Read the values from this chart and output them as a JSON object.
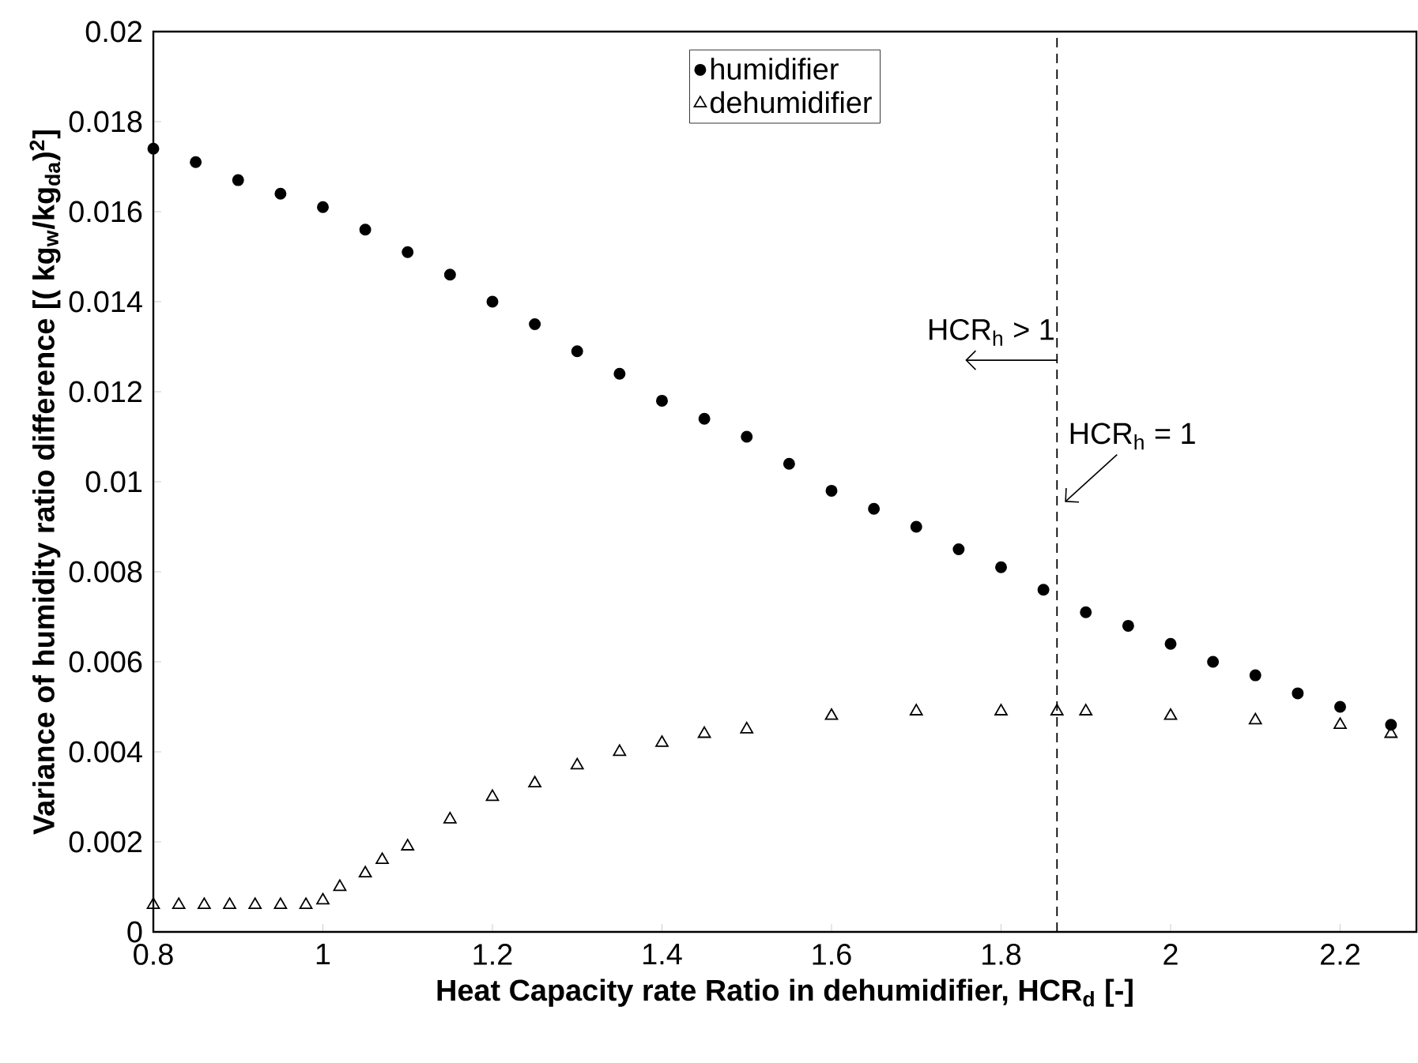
{
  "chart_data": {
    "type": "scatter",
    "xlabel": "**Heat Capacity rate Ratio in dehumidifier, HCR$_{d}$ [-]**",
    "ylabel": "**Variance of humidity ratio difference [( kg$_{w}$/kg$_{da}$)$^{2}$]**",
    "xlim": [
      0.8,
      2.29
    ],
    "ylim": [
      0,
      0.02
    ],
    "xticks": [
      0.8,
      1,
      1.2,
      1.4,
      1.6,
      1.8,
      2,
      2.2
    ],
    "yticks": [
      0,
      0.002,
      0.004,
      0.006,
      0.008,
      0.01,
      0.012,
      0.014,
      0.016,
      0.018,
      0.02
    ],
    "legend": "top",
    "grid": false,
    "series": [
      {
        "name": "humidifier",
        "color": "#000000",
        "marker": "circle",
        "x": [
          0.8,
          0.85,
          0.9,
          0.95,
          1.0,
          1.05,
          1.1,
          1.15,
          1.2,
          1.25,
          1.3,
          1.35,
          1.4,
          1.45,
          1.5,
          1.55,
          1.6,
          1.65,
          1.7,
          1.75,
          1.8,
          1.85,
          1.9,
          1.95,
          2.0,
          2.05,
          2.1,
          2.15,
          2.2,
          2.26
        ],
        "values": [
          0.0174,
          0.0171,
          0.0167,
          0.0164,
          0.0161,
          0.0156,
          0.0151,
          0.0146,
          0.014,
          0.0135,
          0.0129,
          0.0124,
          0.0118,
          0.0114,
          0.011,
          0.0104,
          0.0098,
          0.0094,
          0.009,
          0.0085,
          0.0081,
          0.0076,
          0.0071,
          0.0068,
          0.0064,
          0.006,
          0.0057,
          0.0053,
          0.005,
          0.0046
        ]
      },
      {
        "name": "dehumidifier",
        "color": "#000000",
        "marker": "triangle",
        "x": [
          0.8,
          0.83,
          0.86,
          0.89,
          0.92,
          0.95,
          0.98,
          1.0,
          1.02,
          1.05,
          1.07,
          1.1,
          1.15,
          1.2,
          1.25,
          1.3,
          1.35,
          1.4,
          1.45,
          1.5,
          1.6,
          1.7,
          1.8,
          1.866,
          1.9,
          2.0,
          2.1,
          2.2,
          2.26
        ],
        "values": [
          0.0006,
          0.0006,
          0.0006,
          0.0006,
          0.0006,
          0.0006,
          0.0006,
          0.0007,
          0.001,
          0.0013,
          0.0016,
          0.0019,
          0.0025,
          0.003,
          0.0033,
          0.0037,
          0.004,
          0.0042,
          0.0044,
          0.0045,
          0.0048,
          0.0049,
          0.0049,
          0.0049,
          0.0049,
          0.0048,
          0.0047,
          0.0046,
          0.0044
        ]
      }
    ],
    "ref_lines": [
      {
        "axis": "x",
        "value": 1.866,
        "line_style": "dashed"
      }
    ],
    "annotations": [
      {
        "text": "HCR$_{h}$ > 1",
        "x": 1.866,
        "y": 0.0127
      },
      "HCR$_{h}$ = 1"
    ]
  }
}
